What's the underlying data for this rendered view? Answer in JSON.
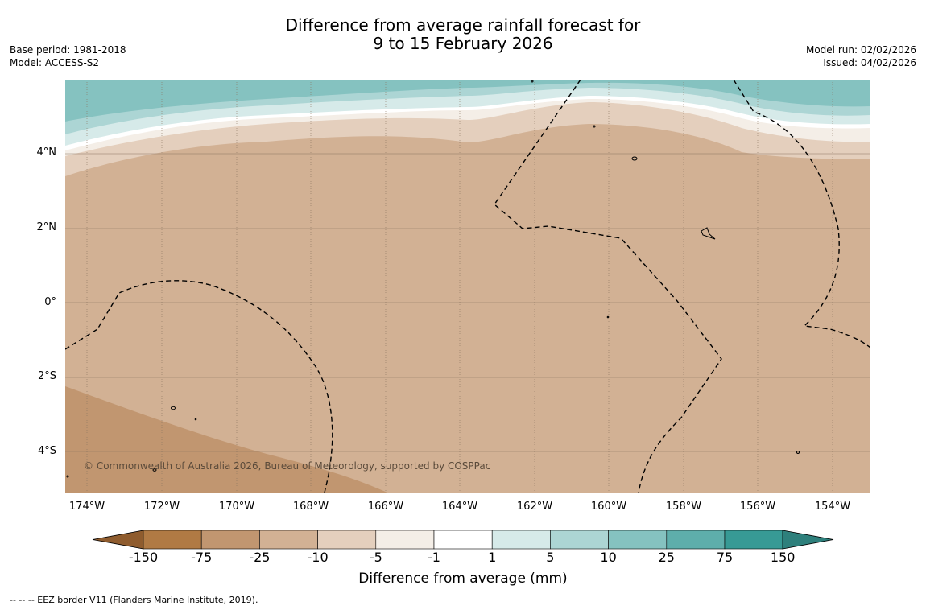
{
  "title_line1": "Difference from average rainfall forecast for",
  "title_line2": "9 to 15 February 2026",
  "base_period": "Base period: 1981-2018",
  "model": "Model: ACCESS-S2",
  "model_run": "Model run: 02/02/2026",
  "issued": "Issued: 04/02/2026",
  "copyright": "© Commonwealth of Australia 2026, Bureau of Meteorology, supported by COSPPac",
  "footer": "--  --  -- EEZ border V11 (Flanders Marine Institute, 2019).",
  "lat_labels": [
    "4°N",
    "2°N",
    "0°",
    "2°S",
    "4°S"
  ],
  "lon_labels": [
    "174°W",
    "172°W",
    "170°W",
    "168°W",
    "166°W",
    "164°W",
    "162°W",
    "160°W",
    "158°W",
    "156°W",
    "154°W"
  ],
  "colorbar": {
    "title": "Difference from average (mm)",
    "ticks": [
      "-150",
      "-75",
      "-25",
      "-10",
      "-5",
      "-1",
      "1",
      "5",
      "10",
      "25",
      "75",
      "150"
    ],
    "colors": [
      "#b07a44",
      "#c19670",
      "#d2b194",
      "#e4cfbd",
      "#f4eee7",
      "#ffffff",
      "#d6eae9",
      "#acd5d4",
      "#85c2c0",
      "#5eaeab",
      "#379a95"
    ],
    "under_color": "#8f5c2e",
    "over_color": "#2e807c"
  },
  "map_colors": {
    "band_high_teal": "#85c2c0",
    "band_teal2": "#acd5d4",
    "band_teal3": "#d6eae9",
    "band_white": "#ffffff",
    "band_cream": "#f4eee7",
    "band_light_tan": "#e4cfbd",
    "base_tan": "#d2b194",
    "dark_tan": "#c19670",
    "land": "#000000"
  }
}
